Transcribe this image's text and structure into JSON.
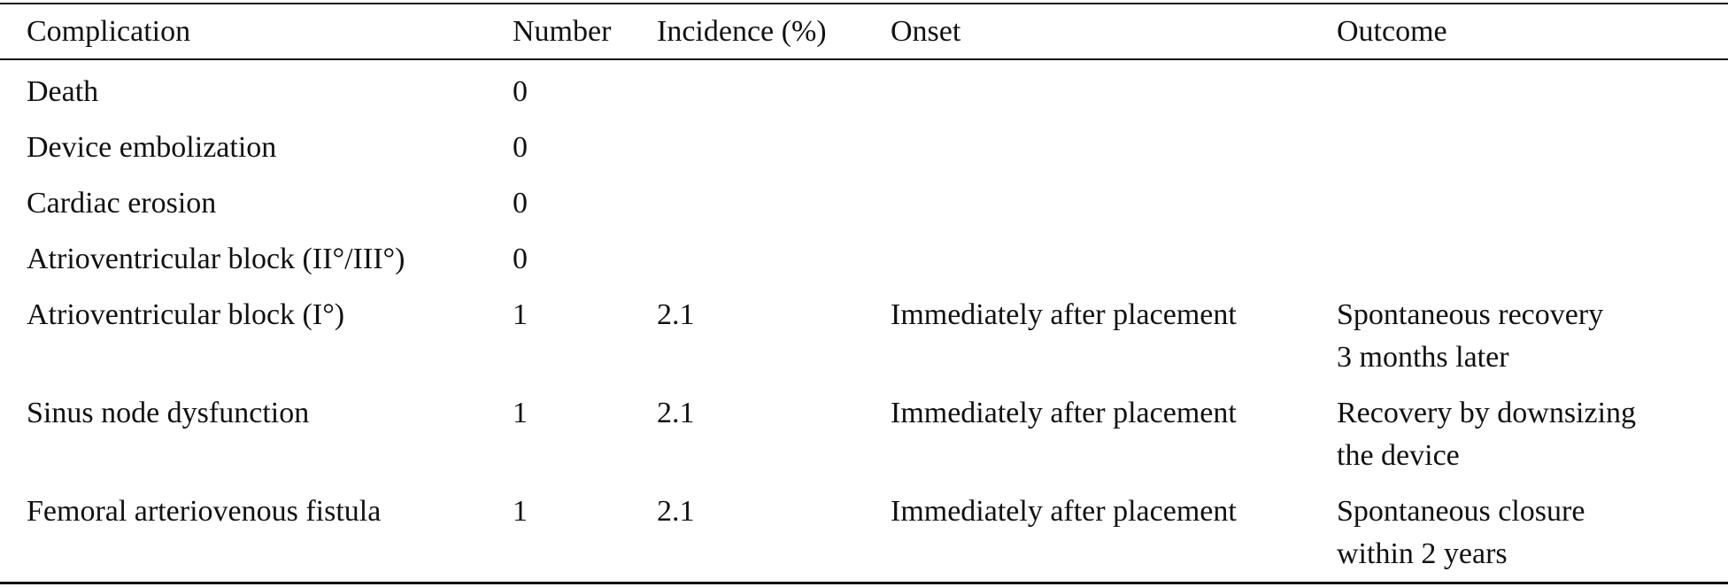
{
  "table": {
    "header": [
      "Complication",
      "Number",
      "Incidence (%)",
      "Onset",
      "Outcome"
    ],
    "rows": [
      {
        "complication": "Death",
        "number": 0
      },
      {
        "complication": "Device embolization",
        "number": 0
      },
      {
        "complication": "Cardiac erosion",
        "number": 0
      },
      {
        "complication": "Atrioventricular block (II°/III°)",
        "number": 0
      },
      {
        "complication": "Atrioventricular block (I°)",
        "number": 1,
        "incidence": 2.1,
        "onset": "Immediately after placement",
        "outcome": [
          "Spontaneous recovery",
          "3 months later"
        ]
      },
      {
        "complication": "Sinus node dysfunction",
        "number": 1,
        "incidence": 2.1,
        "onset": "Immediately after placement",
        "outcome": [
          "Recovery by downsizing",
          "the device"
        ]
      },
      {
        "complication": "Femoral arteriovenous fistula",
        "number": 1,
        "incidence": 2.1,
        "onset": "Immediately after placement",
        "outcome": [
          "Spontaneous closure",
          "within 2 years"
        ]
      }
    ]
  }
}
